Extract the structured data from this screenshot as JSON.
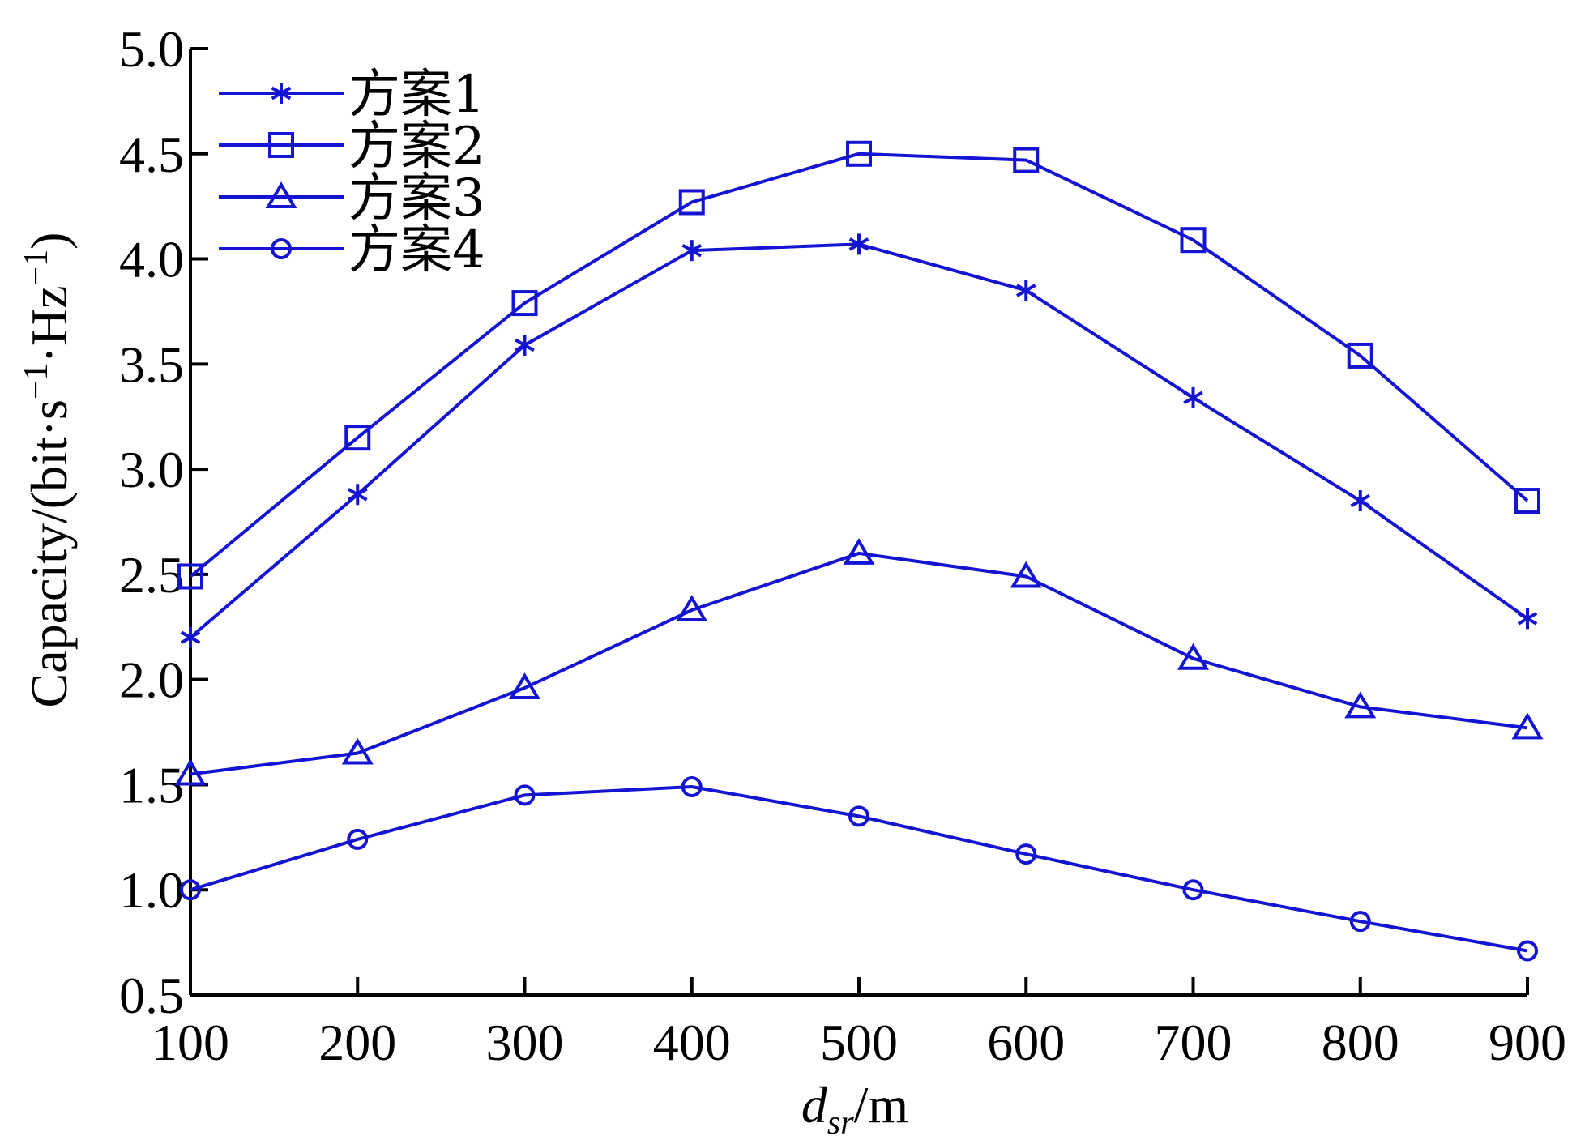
{
  "chart_data": {
    "type": "line",
    "xlabel_main": "d",
    "xlabel_sub": "sr",
    "xlabel_unit": "/m",
    "ylabel": "Capacity/(bit·s",
    "ylabel_sup1": "−1",
    "ylabel_mid": "·Hz",
    "ylabel_sup2": "−1",
    "ylabel_end": ")",
    "xlim": [
      100,
      900
    ],
    "ylim": [
      0.5,
      5.0
    ],
    "xticks": [
      100,
      200,
      300,
      400,
      500,
      600,
      700,
      800,
      900
    ],
    "xtick_labels": [
      "100",
      "200",
      "300",
      "400",
      "500",
      "600",
      "700",
      "800",
      "900"
    ],
    "yticks": [
      0.5,
      1.0,
      1.5,
      2.0,
      2.5,
      3.0,
      3.5,
      4.0,
      4.5,
      5.0
    ],
    "ytick_labels": [
      "0.5",
      "1.0",
      "1.5",
      "2.0",
      "2.5",
      "3.0",
      "3.5",
      "4.0",
      "4.5",
      "5.0"
    ],
    "x": [
      100,
      200,
      300,
      400,
      500,
      600,
      700,
      800,
      900
    ],
    "grid": false,
    "legend_position": "top-left",
    "line_color": "#1414d2",
    "series": [
      {
        "name": "方案1",
        "marker": "asterisk",
        "values": [
          2.2,
          2.88,
          3.59,
          4.04,
          4.07,
          3.85,
          3.34,
          2.85,
          2.29
        ]
      },
      {
        "name": "方案2",
        "marker": "square",
        "values": [
          2.49,
          3.15,
          3.79,
          4.27,
          4.5,
          4.47,
          4.09,
          3.54,
          2.85
        ]
      },
      {
        "name": "方案3",
        "marker": "triangle",
        "values": [
          1.55,
          1.65,
          1.96,
          2.33,
          2.6,
          2.49,
          2.1,
          1.87,
          1.77
        ]
      },
      {
        "name": "方案4",
        "marker": "circle",
        "values": [
          1.0,
          1.24,
          1.45,
          1.49,
          1.35,
          1.17,
          1.0,
          0.85,
          0.71
        ]
      }
    ]
  }
}
